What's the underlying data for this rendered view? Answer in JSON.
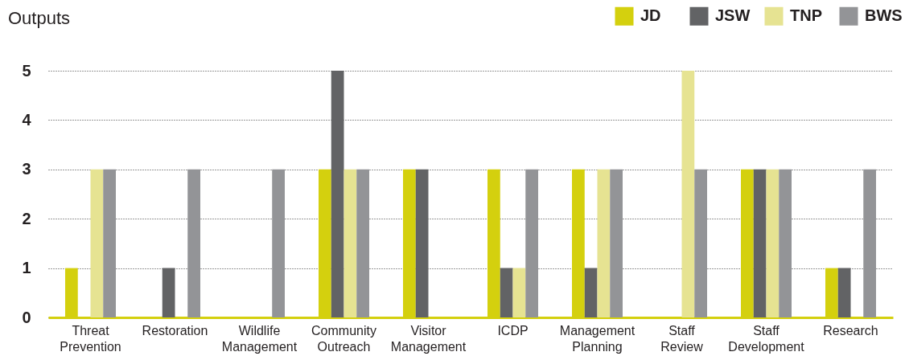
{
  "chart_data": {
    "type": "bar",
    "title": "Outputs",
    "categories": [
      "Threat Prevention",
      "Restoration",
      "Wildlife Management",
      "Community Outreach",
      "Visitor Management",
      "ICDP",
      "Management Planning",
      "Staff Review",
      "Staff Development",
      "Research"
    ],
    "series": [
      {
        "name": "JD",
        "color": "#d4d00e",
        "values": [
          1,
          0,
          0,
          3,
          3,
          3,
          3,
          0,
          3,
          1
        ]
      },
      {
        "name": "JSW",
        "color": "#626365",
        "values": [
          0,
          1,
          0,
          5,
          3,
          1,
          1,
          0,
          3,
          1
        ]
      },
      {
        "name": "TNP",
        "color": "#e6e392",
        "values": [
          3,
          0,
          0,
          3,
          0,
          1,
          3,
          5,
          3,
          0
        ]
      },
      {
        "name": "BWS",
        "color": "#939497",
        "values": [
          3,
          3,
          3,
          3,
          0,
          3,
          3,
          3,
          3,
          3
        ]
      }
    ],
    "ylim": [
      0,
      5
    ],
    "yticks": [
      0,
      1,
      2,
      3,
      4,
      5
    ],
    "grid": "y",
    "legend": "top right"
  }
}
